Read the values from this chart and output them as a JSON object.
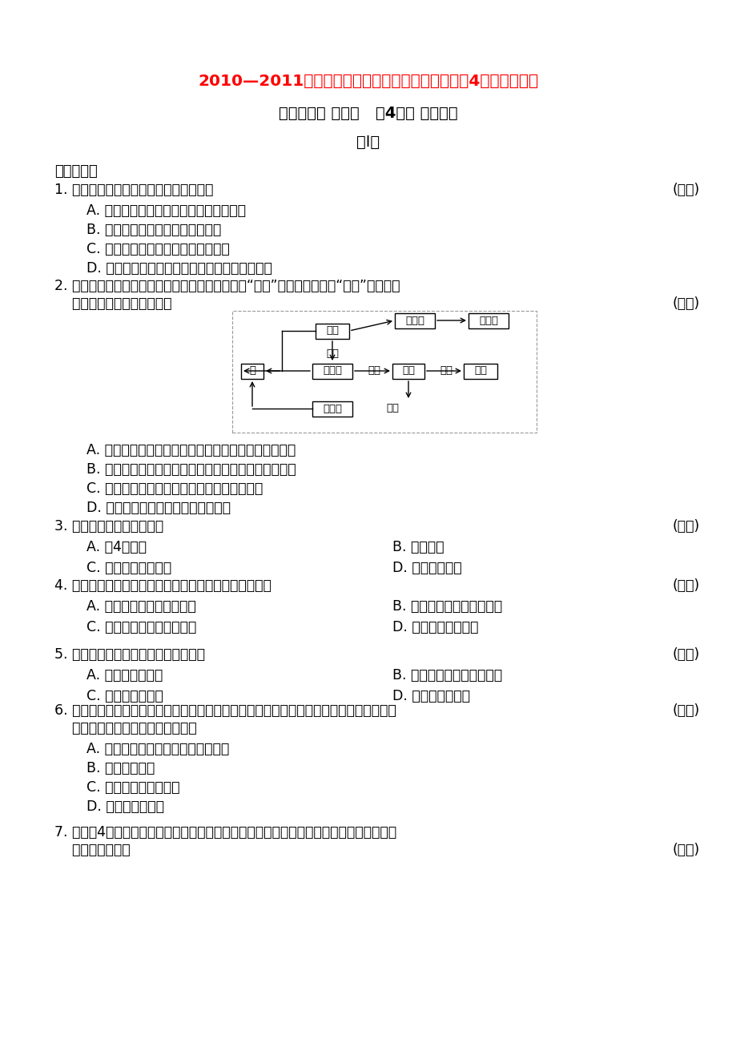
{
  "title1": "2010—2011学年度上学期单元测试高二生物试题（4）【新人教】",
  "title2": "命题范围： 选修三   第4单元 生态工程",
  "title3": "第Ⅰ卷",
  "section1": "一、选择题",
  "q1": "1. 下列关于生态工程的叙述中，错误的是",
  "q1_bracket": "(　　)",
  "q1a": "A. 生态工程是生态学与系统工程学的结合",
  "q1b": "B. 生态工程追求经济与生态的双赢",
  "q1c": "C. 生态工程是无消耗、多效益的工程",
  "q1d": "D. 生态工程促进人类社会和自然环境的和谐变展",
  "q2": "2. 设计生态工程的常用方法之一是给食物链（网）“加环”，下图就是一种“加环”示意图，",
  "q2_cont": "    据图判断下列说法正确的是",
  "q2_bracket": "(　　)",
  "q2a": "A. 用玉米的副产品玉米芒生产木糖醇，可增加经济效益",
  "q2b": "B. 用残渣来培育食用菌和螅蚀，实现了物质的多级利用",
  "q2c": "C. 用螅蚀粪便还田，运用了能量循环再生原理",
  "q2d": "D. 该生态工程的运转离不开人的管理",
  "q3": "3. 下列不属于生态工程的是",
  "q3_bracket": "(　　)",
  "q3a": "A. 氧4气工程",
  "q3b": "B. 桑基鱼塘",
  "q3c": "C. 长江两岸加固河堤",
  "q3d": "D. 退耕还林还草",
  "q4": "4. 我国在西部地区实行退耕还林还草工程，这一工程属于",
  "q4_bracket": "(　　)",
  "q4a": "A. 农村综合发展型生态工程",
  "q4b": "B. 小流域综合治理生态工程",
  "q4c": "C. 大区域生态系统恢复工程",
  "q4d": "D. 湿地生态恢复工程",
  "q5": "5. 我国农业生态工程遵循的基本原理是",
  "q5_bracket": "(　　)",
  "q5a": "A. 小流域综合治理",
  "q5b": "B. 整体、协调、再生、循环",
  "q5c": "C. 大区域综合治理",
  "q5d": "D. 增加物种多样性",
  "q6": "6. 采矿能为工农业生产和人民生活提供必需的资源，但矿藏开采后会造成严重的生态破坏。",
  "q6_cont": "    在实施恢复工程中，关键的措施是",
  "q6_bracket": "(　　)",
  "q6a": "A. 恢复植被和土壤微生物群落的重建",
  "q6b": "B. 人工制造表土",
  "q6c": "C. 多层覆盖和特殊隔离",
  "q6d": "D. 机械平整、压实",
  "q7": "7. 实施氧4气工程，是我国政府为改善农村环境和发展农村经济大力推广的一种生态工程。",
  "q7_cont": "    它遵循的原理是",
  "q7_bracket": "(　　)",
  "bg_color": "#ffffff",
  "text_color": "#000000",
  "title_color": "#ff0000"
}
